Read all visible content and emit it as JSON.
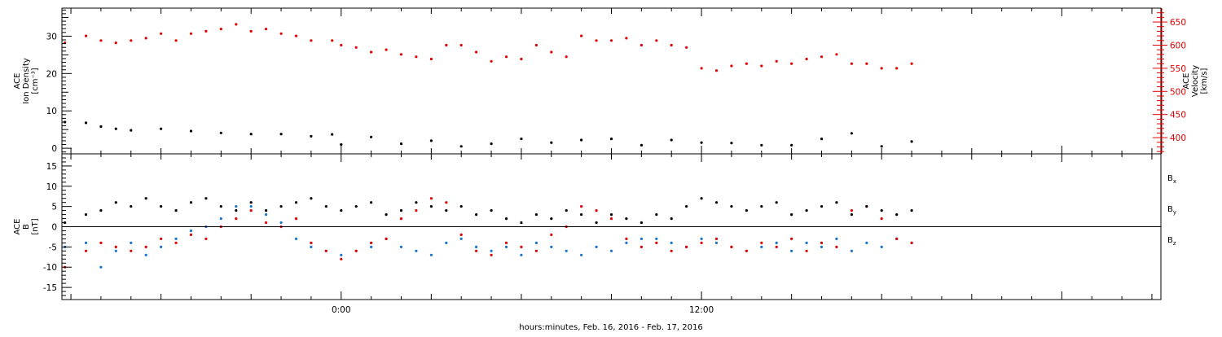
{
  "colors": {
    "density": "#000000",
    "velocity": "#e00000",
    "bx": "#000000",
    "by": "#1874cd",
    "bz": "#e00000"
  },
  "xlabel": "hours:minutes, Feb. 16, 2016 - Feb. 17, 2016",
  "chart_data": [
    {
      "type": "scatter",
      "panel": "top",
      "x_unit": "hours from 2016-02-16 00:00",
      "xlim": [
        -9.3,
        27.3
      ],
      "x_tick_labels": [
        {
          "x": 0,
          "label": "0:00"
        },
        {
          "x": 12,
          "label": "12:00"
        }
      ],
      "left_axis": {
        "label_lines": [
          "ACE",
          "Ion Density",
          "[cm⁻³]"
        ],
        "ylim": [
          -1.5,
          37.5
        ],
        "ticks": [
          0,
          10,
          20,
          30
        ]
      },
      "right_axis": {
        "label_lines": [
          "ACE",
          "Velocity",
          "[km/s]"
        ],
        "ylim": [
          365,
          680
        ],
        "ticks": [
          400,
          450,
          500,
          550,
          600,
          650
        ]
      },
      "series": [
        {
          "axis": "left",
          "color": "#000000",
          "x": [
            -9.2,
            -8.5,
            -8,
            -7.5,
            -7,
            -6,
            -5,
            -4,
            -3,
            -2,
            -1,
            -0.3,
            0,
            1,
            2,
            3,
            4,
            5,
            6,
            7,
            8,
            9,
            10,
            11,
            12,
            13,
            14,
            15,
            16,
            17,
            18,
            19
          ],
          "y": [
            7,
            6.8,
            5.8,
            5.2,
            4.8,
            5.2,
            4.6,
            4.1,
            3.8,
            3.8,
            3.2,
            3.7,
            1,
            3,
            1.2,
            2,
            0.5,
            1.2,
            2.5,
            1.5,
            2.2,
            2.5,
            0.8,
            2.2,
            1.5,
            1.4,
            0.8,
            0.8,
            2.5,
            4,
            0.5,
            1.8
          ]
        },
        {
          "axis": "right",
          "color": "#e00000",
          "x": [
            -9.2,
            -8.5,
            -8,
            -7.5,
            -7,
            -6.5,
            -6,
            -5.5,
            -5,
            -4.5,
            -4,
            -3.5,
            -3,
            -2.5,
            -2,
            -1.5,
            -1,
            -0.3,
            0,
            0.5,
            1,
            1.5,
            2,
            2.5,
            3,
            3.5,
            4,
            4.5,
            5,
            5.5,
            6,
            6.5,
            7,
            7.5,
            8,
            8.5,
            9,
            9.5,
            10,
            10.5,
            11,
            11.5,
            12,
            12.5,
            13,
            13.5,
            14,
            14.5,
            15,
            15.5,
            16,
            16.5,
            17,
            17.5,
            18,
            18.5,
            19
          ],
          "y": [
            605,
            620,
            610,
            605,
            610,
            615,
            625,
            610,
            625,
            630,
            635,
            645,
            630,
            635,
            625,
            620,
            610,
            610,
            600,
            595,
            585,
            590,
            580,
            575,
            570,
            600,
            600,
            585,
            565,
            575,
            570,
            600,
            585,
            575,
            620,
            610,
            610,
            615,
            600,
            610,
            600,
            595,
            550,
            545,
            555,
            560,
            555,
            565,
            560,
            570,
            575,
            580,
            560,
            560,
            550,
            550,
            560
          ]
        }
      ]
    },
    {
      "type": "scatter",
      "panel": "bottom",
      "x_unit": "hours from 2016-02-16 00:00",
      "xlim": [
        -9.3,
        27.3
      ],
      "x_tick_labels": [
        {
          "x": 0,
          "label": "0:00"
        },
        {
          "x": 12,
          "label": "12:00"
        }
      ],
      "left_axis": {
        "label_lines": [
          "ACE",
          "B",
          "[nT]"
        ],
        "ylim": [
          -18,
          18
        ],
        "ticks": [
          -15,
          -10,
          -5,
          0,
          5,
          10,
          15
        ]
      },
      "zero_line": true,
      "legend": [
        {
          "label": "B",
          "sub": "x",
          "color": "#000000"
        },
        {
          "label": "B",
          "sub": "y",
          "color": "#1874cd"
        },
        {
          "label": "B",
          "sub": "z",
          "color": "#e00000"
        }
      ],
      "series": [
        {
          "name": "Bx",
          "color": "#000000",
          "x": [
            -9.2,
            -8.5,
            -8,
            -7.5,
            -7,
            -6.5,
            -6,
            -5.5,
            -5,
            -4.5,
            -4,
            -3.5,
            -3,
            -2.5,
            -2,
            -1.5,
            -1,
            -0.5,
            0,
            0.5,
            1,
            1.5,
            2,
            2.5,
            3,
            3.5,
            4,
            4.5,
            5,
            5.5,
            6,
            6.5,
            7,
            7.5,
            8,
            8.5,
            9,
            9.5,
            10,
            10.5,
            11,
            11.5,
            12,
            12.5,
            13,
            13.5,
            14,
            14.5,
            15,
            15.5,
            16,
            16.5,
            17,
            17.5,
            18,
            18.5,
            19
          ],
          "y": [
            1,
            3,
            4,
            6,
            5,
            7,
            5,
            4,
            6,
            7,
            5,
            4,
            6,
            4,
            5,
            6,
            7,
            5,
            4,
            5,
            6,
            3,
            4,
            6,
            5,
            4,
            5,
            3,
            4,
            2,
            1,
            3,
            2,
            4,
            3,
            1,
            3,
            2,
            1,
            3,
            2,
            5,
            7,
            6,
            5,
            4,
            5,
            6,
            3,
            4,
            5,
            6,
            3,
            5,
            4,
            3,
            4
          ]
        },
        {
          "name": "By",
          "color": "#1874cd",
          "x": [
            -9.2,
            -8.5,
            -8,
            -7.5,
            -7,
            -6.5,
            -6,
            -5.5,
            -5,
            -4.5,
            -4,
            -3.5,
            -3,
            -2.5,
            -2,
            -1.5,
            -1,
            -0.5,
            0,
            0.5,
            1,
            1.5,
            2,
            2.5,
            3,
            3.5,
            4,
            4.5,
            5,
            5.5,
            6,
            6.5,
            7,
            7.5,
            8,
            8.5,
            9,
            9.5,
            10,
            10.5,
            11,
            11.5,
            12,
            12.5,
            13,
            13.5,
            14,
            14.5,
            15,
            15.5,
            16,
            16.5,
            17,
            17.5,
            18,
            18.5,
            19
          ],
          "y": [
            -5,
            -4,
            -10,
            -6,
            -4,
            -7,
            -5,
            -3,
            -1,
            0,
            2,
            5,
            5,
            3,
            1,
            -3,
            -5,
            -6,
            -7,
            -6,
            -5,
            -3,
            -5,
            -6,
            -7,
            -4,
            -3,
            -5,
            -6,
            -5,
            -7,
            -4,
            -5,
            -6,
            -7,
            -5,
            -6,
            -4,
            -3,
            -3,
            -4,
            -5,
            -3,
            -4,
            -5,
            -6,
            -5,
            -4,
            -6,
            -4,
            -5,
            -3,
            -6,
            -4,
            -5,
            -3,
            -4
          ]
        },
        {
          "name": "Bz",
          "color": "#e00000",
          "x": [
            -9.2,
            -8.5,
            -8,
            -7.5,
            -7,
            -6.5,
            -6,
            -5.5,
            -5,
            -4.5,
            -4,
            -3.5,
            -3,
            -2.5,
            -2,
            -1.5,
            -1,
            -0.5,
            0,
            0.5,
            1,
            1.5,
            2,
            2.5,
            3,
            3.5,
            4,
            4.5,
            5,
            5.5,
            6,
            6.5,
            7,
            7.5,
            8,
            8.5,
            9,
            9.5,
            10,
            10.5,
            11,
            11.5,
            12,
            12.5,
            13,
            13.5,
            14,
            14.5,
            15,
            15.5,
            16,
            16.5,
            17,
            17.5,
            18,
            18.5,
            19
          ],
          "y": [
            -10,
            -6,
            -4,
            -5,
            -6,
            -5,
            -3,
            -4,
            -2,
            -3,
            0,
            2,
            4,
            1,
            0,
            2,
            -4,
            -6,
            -8,
            -6,
            -4,
            -3,
            2,
            4,
            7,
            6,
            -2,
            -6,
            -7,
            -4,
            -5,
            -6,
            -2,
            0,
            5,
            4,
            2,
            -3,
            -5,
            -4,
            -6,
            -5,
            -4,
            -3,
            -5,
            -6,
            -4,
            -5,
            -3,
            -6,
            -4,
            -5,
            4,
            5,
            2,
            -3,
            -4
          ]
        }
      ]
    }
  ]
}
